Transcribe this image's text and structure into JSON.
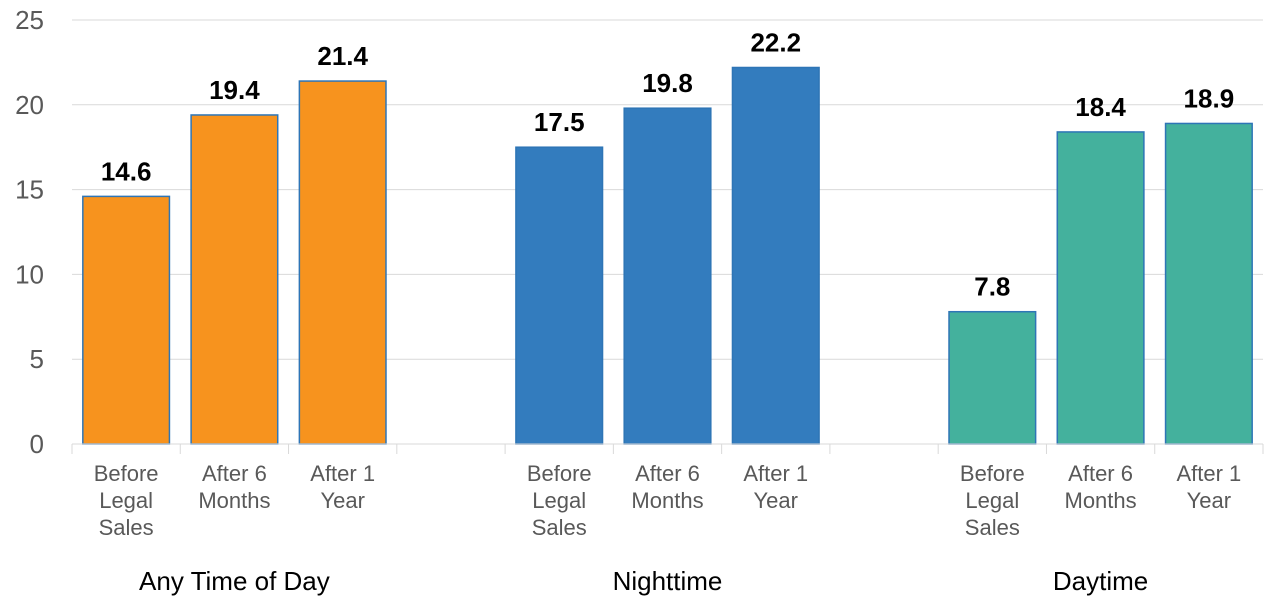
{
  "chart_data": {
    "type": "bar",
    "title": "",
    "xlabel": "",
    "ylabel": "",
    "ylim": [
      0,
      25
    ],
    "yticks": [
      0,
      5,
      10,
      15,
      20,
      25
    ],
    "grid": true,
    "legend": "none",
    "groups": [
      {
        "name": "Any Time of Day",
        "color": "#F7931E",
        "categories": [
          "Before Legal Sales",
          "After 6 Months",
          "After 1 Year"
        ],
        "values": [
          14.6,
          19.4,
          21.4
        ],
        "labels": [
          "14.6",
          "19.4",
          "21.4"
        ]
      },
      {
        "name": "Nighttime",
        "color": "#337CBE",
        "categories": [
          "Before Legal Sales",
          "After 6 Months",
          "After 1 Year"
        ],
        "values": [
          17.5,
          19.8,
          22.2
        ],
        "labels": [
          "17.5",
          "19.8",
          "22.2"
        ]
      },
      {
        "name": "Daytime",
        "color": "#44B19D",
        "categories": [
          "Before Legal Sales",
          "After 6 Months",
          "After 1 Year"
        ],
        "values": [
          7.8,
          18.4,
          18.9
        ],
        "labels": [
          "7.8",
          "18.4",
          "18.9"
        ]
      }
    ]
  }
}
